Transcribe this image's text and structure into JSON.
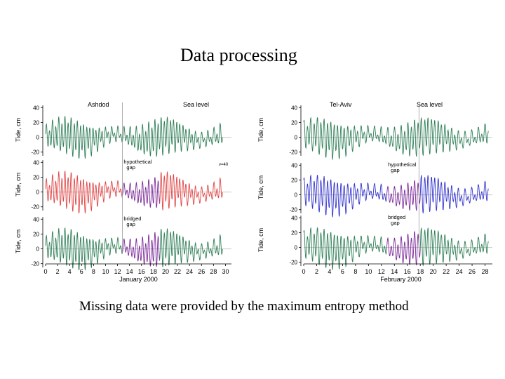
{
  "slide": {
    "title": "Data processing",
    "caption": "Missing data were provided by the maximum entropy method"
  },
  "colors": {
    "observed": "#2f7f57",
    "hypothetical_left": "#e04545",
    "hypothetical_right": "#3333cc",
    "bridged": "#7b2a9a",
    "axis": "#000000",
    "grid": "#c8c8c8",
    "divider": "#9a9a9a"
  },
  "chart_data": [
    {
      "type": "line",
      "station": "Ashdod",
      "series_label": "Sea level",
      "xlabel": "January 2000",
      "xlim": [
        0,
        31
      ],
      "xticks": [
        "0",
        "2",
        "4",
        "6",
        "8",
        "10",
        "12",
        "14",
        "16",
        "18",
        "20",
        "22",
        "24",
        "26",
        "28",
        "30"
      ],
      "gap_marker_day": 12.8,
      "panels": [
        {
          "ylabel": "Tide, cm",
          "ylim": [
            -25,
            45
          ],
          "yticks": [
            "40",
            "20",
            "0",
            "-20"
          ],
          "note": "",
          "label": ""
        },
        {
          "ylabel": "Tide, cm",
          "ylim": [
            -25,
            45
          ],
          "yticks": [
            "40",
            "20",
            "0",
            "-20"
          ],
          "label": "hypothetical gap",
          "note": "v=40"
        },
        {
          "ylabel": "Tide, cm",
          "ylim": [
            -25,
            45
          ],
          "yticks": [
            "40",
            "20",
            "0",
            "-20"
          ],
          "label": "bridged gap",
          "note": ""
        }
      ],
      "tide_model": {
        "semidiurnal_period_days": 0.5175,
        "diurnal_period_days": 1.0,
        "semidiurnal_amplitude_range_cm": [
          6,
          22
        ],
        "spring_neap_period_days": 14.8,
        "gap_days": [
          12.8,
          19.0
        ]
      }
    },
    {
      "type": "line",
      "station": "Tel-Aviv",
      "series_label": "Sea level",
      "xlabel": "February 2000",
      "xlim": [
        0,
        30
      ],
      "xticks": [
        "0",
        "2",
        "4",
        "6",
        "8",
        "10",
        "12",
        "14",
        "16",
        "18",
        "20",
        "22",
        "24",
        "26",
        "28",
        "30"
      ],
      "gap_marker_day": 17.8,
      "panels": [
        {
          "ylabel": "Tide, cm",
          "ylim": [
            -25,
            45
          ],
          "yticks": [
            "40",
            "20",
            "0",
            "-20"
          ],
          "note": "",
          "label": ""
        },
        {
          "ylabel": "Tide, cm",
          "ylim": [
            -25,
            45
          ],
          "yticks": [
            "40",
            "20",
            "0",
            "-20"
          ],
          "label": "hypothetical gap",
          "note": ""
        },
        {
          "ylabel": "Tide, cm",
          "ylim": [
            -25,
            45
          ],
          "yticks": [
            "40",
            "20",
            "0",
            "-20"
          ],
          "label": "bridged gap",
          "note": ""
        }
      ],
      "tide_model": {
        "semidiurnal_period_days": 0.5175,
        "diurnal_period_days": 1.0,
        "semidiurnal_amplitude_range_cm": [
          6,
          22
        ],
        "spring_neap_period_days": 14.8,
        "gap_days": [
          12.8,
          18.0
        ]
      }
    }
  ]
}
